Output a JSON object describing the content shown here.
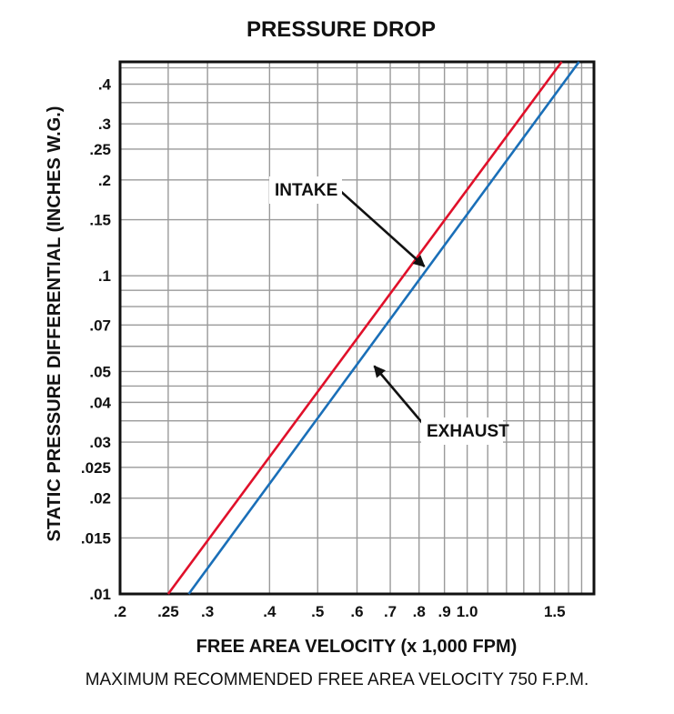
{
  "chart_data": {
    "type": "line",
    "title": "PRESSURE DROP",
    "xlabel": "FREE AREA VELOCITY (x 1,000 FPM)",
    "ylabel": "STATIC PRESSURE DIFFERENTIAL (INCHES W.G.)",
    "x_scale": "log",
    "y_scale": "log",
    "xlim": [
      0.2,
      1.8
    ],
    "ylim": [
      0.01,
      0.47
    ],
    "grid": true,
    "x_ticks": [
      {
        "value": 0.2,
        "label": ".2"
      },
      {
        "value": 0.25,
        "label": ".25"
      },
      {
        "value": 0.3,
        "label": ".3"
      },
      {
        "value": 0.4,
        "label": ".4"
      },
      {
        "value": 0.5,
        "label": ".5"
      },
      {
        "value": 0.6,
        "label": ".6"
      },
      {
        "value": 0.7,
        "label": ".7"
      },
      {
        "value": 0.8,
        "label": ".8"
      },
      {
        "value": 0.9,
        "label": ".9"
      },
      {
        "value": 1.0,
        "label": "1.0"
      },
      {
        "value": 1.5,
        "label": "1.5"
      }
    ],
    "y_ticks": [
      {
        "value": 0.01,
        "label": ".01"
      },
      {
        "value": 0.015,
        "label": ".015"
      },
      {
        "value": 0.02,
        "label": ".02"
      },
      {
        "value": 0.025,
        "label": ".025"
      },
      {
        "value": 0.03,
        "label": ".03"
      },
      {
        "value": 0.04,
        "label": ".04"
      },
      {
        "value": 0.05,
        "label": ".05"
      },
      {
        "value": 0.07,
        "label": ".07"
      },
      {
        "value": 0.1,
        "label": ".1"
      },
      {
        "value": 0.15,
        "label": ".15"
      },
      {
        "value": 0.2,
        "label": ".2"
      },
      {
        "value": 0.25,
        "label": ".25"
      },
      {
        "value": 0.3,
        "label": ".3"
      },
      {
        "value": 0.4,
        "label": ".4"
      }
    ],
    "x_gridlines": [
      0.25,
      0.3,
      0.4,
      0.5,
      0.6,
      0.7,
      0.8,
      0.9,
      1.0,
      1.1,
      1.2,
      1.3,
      1.4,
      1.5,
      1.6,
      1.7
    ],
    "y_gridlines": [
      0.015,
      0.02,
      0.025,
      0.03,
      0.035,
      0.04,
      0.045,
      0.05,
      0.06,
      0.07,
      0.08,
      0.09,
      0.1,
      0.15,
      0.2,
      0.25,
      0.3,
      0.35,
      0.4,
      0.45
    ],
    "series": [
      {
        "name": "INTAKE",
        "color": "#e0102a",
        "points": [
          [
            0.25,
            0.01
          ],
          [
            1.55,
            0.47
          ]
        ]
      },
      {
        "name": "EXHAUST",
        "color": "#1a6fb8",
        "points": [
          [
            0.275,
            0.01
          ],
          [
            1.68,
            0.47
          ]
        ]
      }
    ],
    "annotations": [
      {
        "text": "INTAKE",
        "series": "INTAKE",
        "points_to": [
          0.82,
          0.107
        ]
      },
      {
        "text": "EXHAUST",
        "series": "EXHAUST",
        "points_to": [
          0.65,
          0.052
        ]
      }
    ]
  },
  "footer_note": "MAXIMUM RECOMMENDED FREE AREA VELOCITY 750 F.P.M."
}
